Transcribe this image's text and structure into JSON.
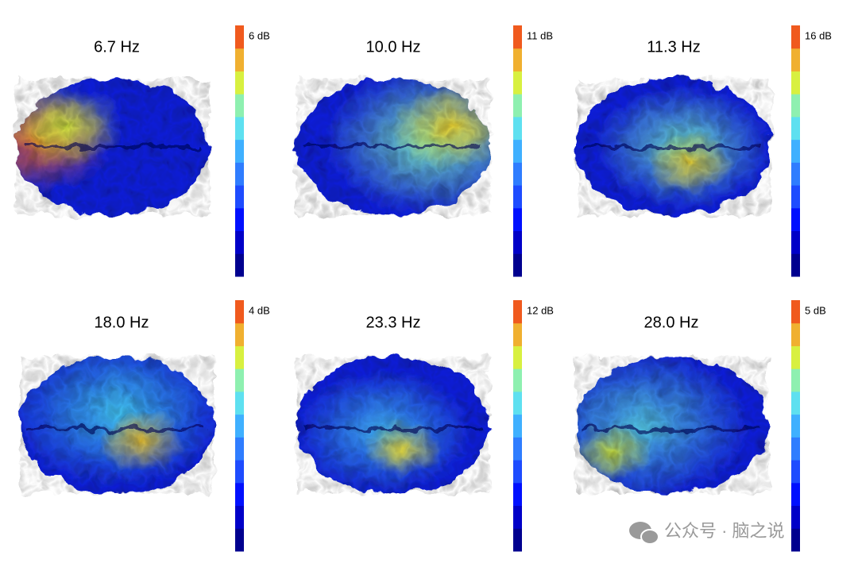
{
  "panels": [
    {
      "title": "6.7 Hz",
      "colorbar_max": "6 dB"
    },
    {
      "title": "10.0 Hz",
      "colorbar_max": "11 dB"
    },
    {
      "title": "11.3 Hz",
      "colorbar_max": "16 dB"
    },
    {
      "title": "18.0 Hz",
      "colorbar_max": "4 dB"
    },
    {
      "title": "23.3 Hz",
      "colorbar_max": "12 dB"
    },
    {
      "title": "28.0 Hz",
      "colorbar_max": "5 dB"
    }
  ],
  "watermark": "公众号 · 脑之说"
}
